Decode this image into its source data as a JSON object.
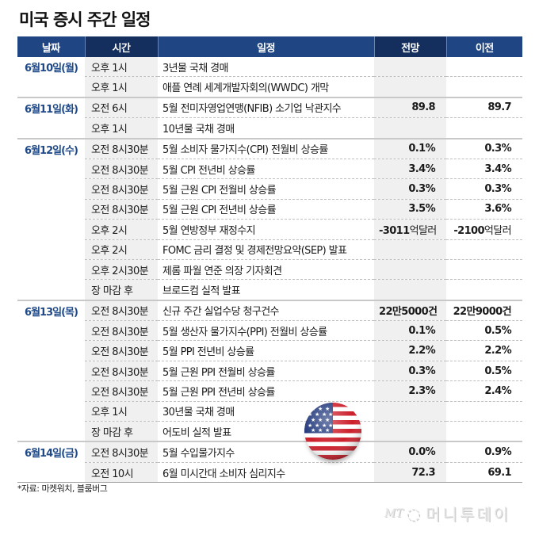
{
  "title": "미국 증시 주간 일정",
  "columns": {
    "date": "날짜",
    "time": "시간",
    "event": "일정",
    "forecast": "전망",
    "previous": "이전"
  },
  "rows": [
    {
      "date": "6월10일(월)",
      "time": "오후 1시",
      "event": "3년물 국채 경매",
      "forecast": "",
      "forecast_unit": "",
      "previous": "",
      "previous_unit": ""
    },
    {
      "date": "",
      "time": "오후 1시",
      "event": "애플 연례 세계개발자회의(WWDC) 개막",
      "forecast": "",
      "forecast_unit": "",
      "previous": "",
      "previous_unit": ""
    },
    {
      "date": "6월11일(화)",
      "time": "오전 6시",
      "event": "5월 전미자영업연맹(NFIB) 소기업 낙관지수",
      "forecast": "89.8",
      "forecast_unit": "",
      "previous": "89.7",
      "previous_unit": ""
    },
    {
      "date": "",
      "time": "오후 1시",
      "event": "10년물 국채 경매",
      "forecast": "",
      "forecast_unit": "",
      "previous": "",
      "previous_unit": ""
    },
    {
      "date": "6월12일(수)",
      "time": "오전 8시30분",
      "event": "5월 소비자 물가지수(CPI) 전월비 상승률",
      "forecast": "0.1%",
      "forecast_unit": "",
      "previous": "0.3%",
      "previous_unit": ""
    },
    {
      "date": "",
      "time": "오전 8시30분",
      "event": "5월 CPI 전년비 상승률",
      "forecast": "3.4%",
      "forecast_unit": "",
      "previous": "3.4%",
      "previous_unit": ""
    },
    {
      "date": "",
      "time": "오전 8시30분",
      "event": "5월 근원 CPI 전월비 상승률",
      "forecast": "0.3%",
      "forecast_unit": "",
      "previous": "0.3%",
      "previous_unit": ""
    },
    {
      "date": "",
      "time": "오전 8시30분",
      "event": "5월 근원 CPI 전년비 상승률",
      "forecast": "3.5%",
      "forecast_unit": "",
      "previous": "3.6%",
      "previous_unit": ""
    },
    {
      "date": "",
      "time": "오후 2시",
      "event": "5월 연방정부 재정수지",
      "forecast": "-3011",
      "forecast_unit": "억달러",
      "previous": "-2100",
      "previous_unit": "억달러"
    },
    {
      "date": "",
      "time": "오후 2시",
      "event": "FOMC 금리 결정 및 경제전망요약(SEP) 발표",
      "forecast": "",
      "forecast_unit": "",
      "previous": "",
      "previous_unit": ""
    },
    {
      "date": "",
      "time": "오후 2시30분",
      "event": "제롬 파월 연준 의장 기자회견",
      "forecast": "",
      "forecast_unit": "",
      "previous": "",
      "previous_unit": ""
    },
    {
      "date": "",
      "time": "장 마감 후",
      "event": "브로드컴 실적 발표",
      "forecast": "",
      "forecast_unit": "",
      "previous": "",
      "previous_unit": ""
    },
    {
      "date": "6월13일(목)",
      "time": "오전 8시30분",
      "event": "신규 주간 실업수당 청구건수",
      "forecast": "22만5000건",
      "forecast_unit": "",
      "previous": "22만9000건",
      "previous_unit": ""
    },
    {
      "date": "",
      "time": "오전 8시30분",
      "event": "5월 생산자 물가지수(PPI) 전월비 상승률",
      "forecast": "0.1%",
      "forecast_unit": "",
      "previous": "0.5%",
      "previous_unit": ""
    },
    {
      "date": "",
      "time": "오전 8시30분",
      "event": "5월 PPI 전년비 상승률",
      "forecast": "2.2%",
      "forecast_unit": "",
      "previous": "2.2%",
      "previous_unit": ""
    },
    {
      "date": "",
      "time": "오전 8시30분",
      "event": "5월 근원 PPI 전월비 상승률",
      "forecast": "0.3%",
      "forecast_unit": "",
      "previous": "0.5%",
      "previous_unit": ""
    },
    {
      "date": "",
      "time": "오전 8시30분",
      "event": "5월 근원 PPI 전년비 상승률",
      "forecast": "2.3%",
      "forecast_unit": "",
      "previous": "2.4%",
      "previous_unit": ""
    },
    {
      "date": "",
      "time": "오후 1시",
      "event": "30년물 국채 경매",
      "forecast": "",
      "forecast_unit": "",
      "previous": "",
      "previous_unit": ""
    },
    {
      "date": "",
      "time": "장 마감 후",
      "event": "어도비 실적 발표",
      "forecast": "",
      "forecast_unit": "",
      "previous": "",
      "previous_unit": ""
    },
    {
      "date": "6월14일(금)",
      "time": "오전 8시30분",
      "event": "5월 수입물가지수",
      "forecast": "0.0%",
      "forecast_unit": "",
      "previous": "0.9%",
      "previous_unit": ""
    },
    {
      "date": "",
      "time": "오전 10시",
      "event": "6월 미시간대 소비자 심리지수",
      "forecast": "72.3",
      "forecast_unit": "",
      "previous": "69.1",
      "previous_unit": ""
    }
  ],
  "source": "*자료: 마켓워치, 블룸버그",
  "logo": {
    "mt": "MT",
    "name": "머니투데이"
  },
  "icons": {
    "flag": "us-flag-icon"
  },
  "colors": {
    "header_bg": "#1f4582",
    "header_dark": "#142f5d",
    "date_text": "#1f4a8a",
    "shade": "#f0f0f0"
  }
}
